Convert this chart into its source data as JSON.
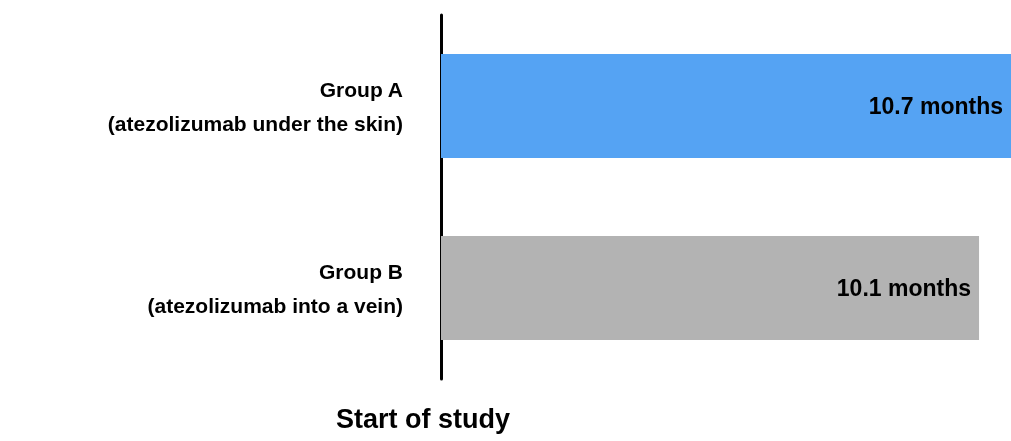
{
  "chart_data": {
    "type": "bar",
    "orientation": "horizontal",
    "xlabel": "Start of study",
    "categories": [
      "Group A\n(atezolizumab under the skin)",
      "Group B\n(atezolizumab into a vein)"
    ],
    "values": [
      10.7,
      10.1
    ],
    "colors": [
      "#55a3f3",
      "#b3b3b3"
    ],
    "value_labels": [
      "10.7 months",
      "10.1 months"
    ],
    "xlim": [
      0,
      10.7
    ],
    "tick_labels": "y"
  }
}
